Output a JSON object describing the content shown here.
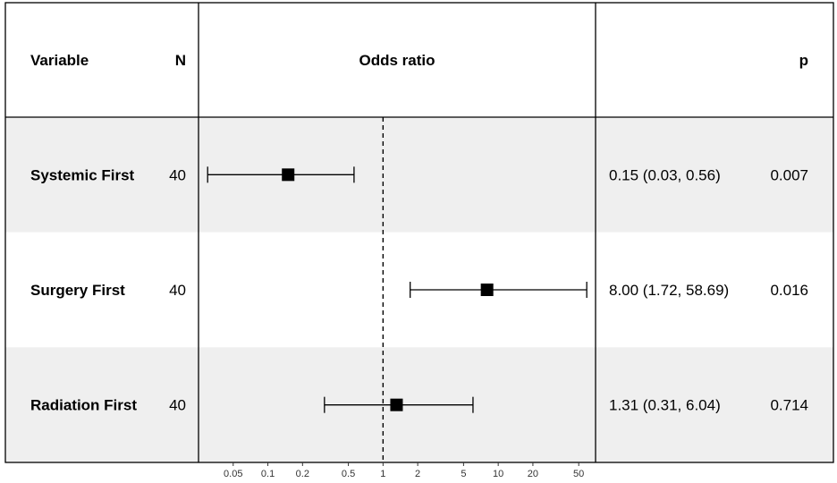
{
  "chart_data": {
    "type": "forest",
    "title": "",
    "columns": {
      "variable": "Variable",
      "n": "N",
      "estimate": "Odds ratio",
      "p": "p"
    },
    "rows": [
      {
        "variable": "Systemic First",
        "n": "40",
        "or": 0.15,
        "lower": 0.03,
        "upper": 0.56,
        "or_text": "0.15 (0.03, 0.56)",
        "p": "0.007"
      },
      {
        "variable": "Surgery First",
        "n": "40",
        "or": 8.0,
        "lower": 1.72,
        "upper": 58.69,
        "or_text": "8.00 (1.72, 58.69)",
        "p": "0.016"
      },
      {
        "variable": "Radiation First",
        "n": "40",
        "or": 1.31,
        "lower": 0.31,
        "upper": 6.04,
        "or_text": "1.31 (0.31, 6.04)",
        "p": "0.714"
      }
    ],
    "x_scale": "log",
    "reference_line": 1,
    "xlim": [
      0.025,
      70
    ],
    "x_ticks": [
      0.05,
      0.1,
      0.2,
      0.5,
      1,
      2,
      5,
      10,
      20,
      50
    ],
    "x_tick_labels": [
      "0.05",
      "0.1",
      "0.2",
      "0.5",
      "1",
      "2",
      "5",
      "10",
      "20",
      "50"
    ],
    "row_shading": [
      "#efefef",
      "#ffffff",
      "#efefef"
    ]
  }
}
